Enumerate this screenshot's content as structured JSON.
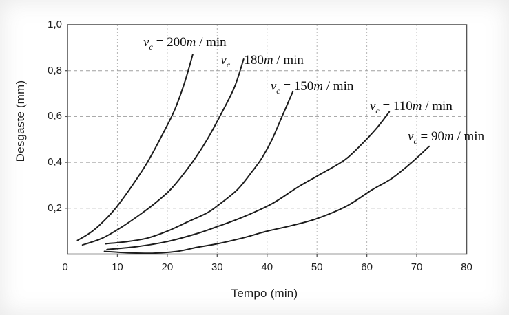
{
  "chart_data": {
    "type": "line",
    "xlabel": "Tempo (min)",
    "ylabel": "Desgaste (mm)",
    "xlim": [
      0,
      80
    ],
    "ylim": [
      0,
      1.0
    ],
    "grid": true,
    "legend_position": "inline-curve-labels",
    "x_tick_values": [
      0,
      10,
      20,
      30,
      40,
      50,
      60,
      70,
      80
    ],
    "x_tick_labels": [
      "0",
      "10",
      "20",
      "30",
      "40",
      "50",
      "60",
      "70",
      "80"
    ],
    "y_tick_values": [
      0.2,
      0.4,
      0.6,
      0.8,
      1.0
    ],
    "y_tick_labels": [
      "0,2",
      "0,4",
      "0,6",
      "0,8",
      "1,0"
    ],
    "curve_label_format": {
      "variable": "v",
      "subscript": "c",
      "equals": "=",
      "unit_prefix": "m",
      "unit_separator": "/",
      "unit": "min"
    },
    "series": [
      {
        "name": "vc-200",
        "cutting_speed_m_per_min": 200,
        "label_value": "200",
        "label_text": "vc = 200m / min",
        "label_anchor_t": 15.2,
        "label_anchor_w": 0.922,
        "points": [
          [
            2,
            0.06
          ],
          [
            5,
            0.1
          ],
          [
            8,
            0.16
          ],
          [
            10,
            0.21
          ],
          [
            13,
            0.3
          ],
          [
            16,
            0.4
          ],
          [
            19,
            0.52
          ],
          [
            21.5,
            0.63
          ],
          [
            23.5,
            0.75
          ],
          [
            25.1,
            0.87
          ]
        ]
      },
      {
        "name": "vc-180",
        "cutting_speed_m_per_min": 180,
        "label_value": "180",
        "label_text": "vc = 180m / min",
        "label_anchor_t": 30.7,
        "label_anchor_w": 0.844,
        "points": [
          [
            3,
            0.04
          ],
          [
            7,
            0.07
          ],
          [
            11,
            0.12
          ],
          [
            15,
            0.18
          ],
          [
            18,
            0.23
          ],
          [
            21,
            0.29
          ],
          [
            25,
            0.4
          ],
          [
            28,
            0.5
          ],
          [
            31,
            0.62
          ],
          [
            33.5,
            0.73
          ],
          [
            35.3,
            0.85
          ]
        ]
      },
      {
        "name": "vc-150",
        "cutting_speed_m_per_min": 150,
        "label_value": "150",
        "label_text": "vc = 150m / min",
        "label_anchor_t": 40.7,
        "label_anchor_w": 0.73,
        "points": [
          [
            7.6,
            0.045
          ],
          [
            12,
            0.055
          ],
          [
            16,
            0.07
          ],
          [
            20,
            0.1
          ],
          [
            24,
            0.14
          ],
          [
            28,
            0.18
          ],
          [
            30,
            0.21
          ],
          [
            34,
            0.28
          ],
          [
            37,
            0.36
          ],
          [
            39,
            0.42
          ],
          [
            41,
            0.5
          ],
          [
            43,
            0.6
          ],
          [
            45.2,
            0.71
          ]
        ]
      },
      {
        "name": "vc-110",
        "cutting_speed_m_per_min": 110,
        "label_value": "110",
        "label_text": "vc = 110m / min",
        "label_anchor_t": 60.6,
        "label_anchor_w": 0.643,
        "points": [
          [
            7.9,
            0.02
          ],
          [
            14,
            0.033
          ],
          [
            20,
            0.055
          ],
          [
            26,
            0.09
          ],
          [
            30,
            0.12
          ],
          [
            35,
            0.16
          ],
          [
            41,
            0.22
          ],
          [
            46,
            0.29
          ],
          [
            50,
            0.34
          ],
          [
            55.5,
            0.41
          ],
          [
            59,
            0.48
          ],
          [
            62,
            0.55
          ],
          [
            64.5,
            0.62
          ]
        ]
      },
      {
        "name": "vc-90",
        "cutting_speed_m_per_min": 90,
        "label_value": "90",
        "label_text": "vc = 90m / min",
        "label_anchor_t": 68.2,
        "label_anchor_w": 0.511,
        "points": [
          [
            7.4,
            0.012
          ],
          [
            12,
            0.006
          ],
          [
            17,
            0.004
          ],
          [
            22,
            0.012
          ],
          [
            26,
            0.03
          ],
          [
            30,
            0.045
          ],
          [
            35,
            0.07
          ],
          [
            40,
            0.1
          ],
          [
            45,
            0.125
          ],
          [
            50,
            0.155
          ],
          [
            56,
            0.21
          ],
          [
            61,
            0.28
          ],
          [
            65,
            0.33
          ],
          [
            69,
            0.4
          ],
          [
            72.5,
            0.47
          ]
        ]
      }
    ],
    "colors": {
      "curve": "#1c1c1c",
      "grid_horizontal": "#9f9f9f",
      "grid_vertical": "#b3b3b3",
      "axis": "#555555",
      "text": "#1f1f1f"
    }
  }
}
